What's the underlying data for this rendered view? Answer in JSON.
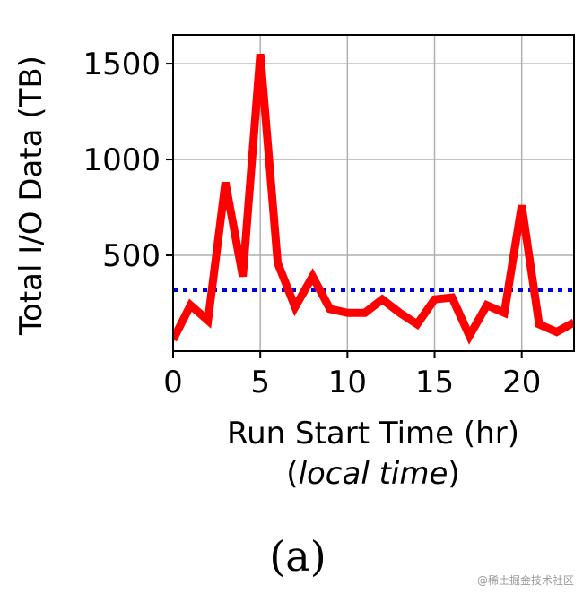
{
  "chart_data": {
    "type": "line",
    "x": [
      0,
      1,
      2,
      3,
      4,
      5,
      6,
      7,
      8,
      9,
      10,
      11,
      12,
      13,
      14,
      15,
      16,
      17,
      18,
      19,
      20,
      21,
      22,
      23
    ],
    "series": [
      {
        "values": [
          60,
          240,
          160,
          880,
          390,
          1550,
          460,
          230,
          390,
          220,
          200,
          200,
          270,
          200,
          140,
          270,
          280,
          80,
          240,
          200,
          760,
          140,
          100,
          150
        ],
        "color": "#ff0000",
        "style": "solid"
      }
    ],
    "reference_line": {
      "y": 320,
      "color": "#0000e0",
      "style": "dotted"
    },
    "ylabel": "Total I/O Data (TB)",
    "xlabel_line1": "Run Start Time (hr)",
    "xlabel_line2_open": "(",
    "xlabel_line2_italic": "local time",
    "xlabel_line2_close": ")",
    "xlim": [
      0,
      23
    ],
    "ylim": [
      0,
      1650
    ],
    "xticks": [
      0,
      5,
      10,
      15,
      20
    ],
    "yticks": [
      500,
      1000,
      1500
    ],
    "grid": true,
    "caption": "(a)"
  },
  "watermark": "@稀土掘金技术社区"
}
